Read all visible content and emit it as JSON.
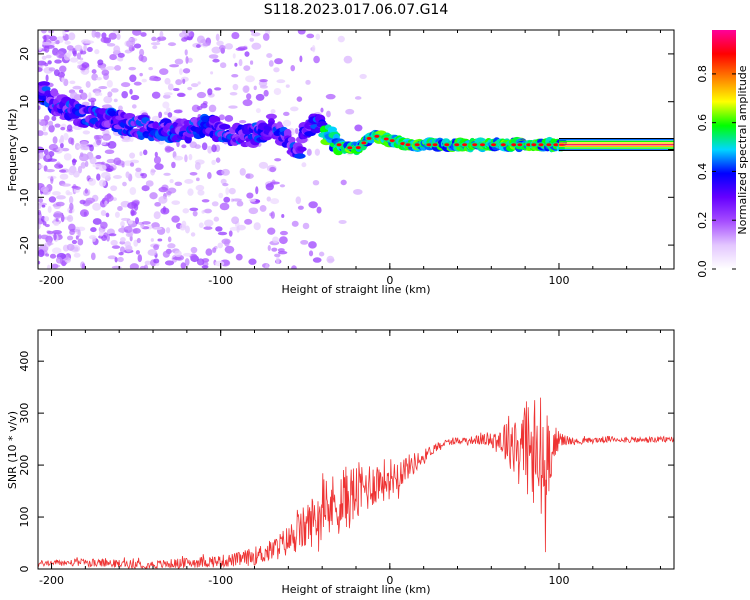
{
  "figure_title": "S118.2023.017.06.07.G14",
  "chart_data": [
    {
      "type": "heatmap",
      "xlabel": "Height of straight line (km)",
      "ylabel": "Frequency (Hz)",
      "xlim": [
        -208,
        168
      ],
      "ylim": [
        -25,
        25
      ],
      "x_ticks": [
        -200,
        -100,
        0,
        100
      ],
      "y_ticks": [
        -20,
        -10,
        0,
        10,
        20
      ],
      "colorbar_label": "Normalized spectral amplitude",
      "colorbar_ticks": [
        0.0,
        0.2,
        0.4,
        0.6,
        0.8
      ],
      "colormap": [
        "#ffffff",
        "#e3c6ff",
        "#a64dff",
        "#6600ff",
        "#0000ff",
        "#00d7ff",
        "#00ff00",
        "#ffff00",
        "#ff8000",
        "#ff0000",
        "#ff0099"
      ],
      "ridge": {
        "x": [
          -205,
          -195,
          -180,
          -165,
          -150,
          -135,
          -120,
          -110,
          -100,
          -90,
          -80,
          -70,
          -60,
          -55,
          -50,
          -45,
          -40,
          -30,
          -20,
          -10,
          0,
          10,
          20,
          40,
          60,
          80,
          90,
          100,
          168
        ],
        "frequency": [
          12,
          9,
          7,
          6,
          5,
          4,
          4,
          5,
          4,
          3,
          3,
          5,
          2,
          -2,
          4,
          6,
          4,
          1,
          0,
          3,
          2,
          1,
          1,
          1,
          1,
          1,
          1,
          1,
          1
        ]
      }
    },
    {
      "type": "line",
      "xlabel": "Height of straight line (km)",
      "ylabel": "SNR (10 * v/v)",
      "xlim": [
        -208,
        168
      ],
      "ylim": [
        0,
        460
      ],
      "x_ticks": [
        -200,
        -100,
        0,
        100
      ],
      "y_ticks": [
        0,
        100,
        200,
        300,
        400
      ],
      "color": "#ee3333",
      "series": [
        {
          "x": [
            -208,
            -200,
            -180,
            -160,
            -140,
            -120,
            -100,
            -90,
            -80,
            -70,
            -60,
            -50,
            -40,
            -30,
            -20,
            -10,
            0,
            10,
            20,
            25,
            30,
            40,
            50,
            60,
            70,
            80,
            85,
            90,
            95,
            100,
            110,
            130,
            150,
            168
          ],
          "values": [
            10,
            12,
            12,
            10,
            8,
            12,
            15,
            18,
            25,
            35,
            55,
            80,
            110,
            130,
            145,
            165,
            175,
            195,
            215,
            230,
            240,
            248,
            248,
            250,
            248,
            245,
            210,
            200,
            230,
            250,
            245,
            250,
            248,
            250
          ],
          "noise": [
            6,
            6,
            8,
            8,
            8,
            10,
            12,
            14,
            18,
            22,
            30,
            45,
            55,
            65,
            60,
            45,
            40,
            25,
            15,
            10,
            8,
            6,
            8,
            15,
            50,
            90,
            130,
            150,
            60,
            15,
            6,
            6,
            6,
            6
          ]
        }
      ]
    }
  ]
}
